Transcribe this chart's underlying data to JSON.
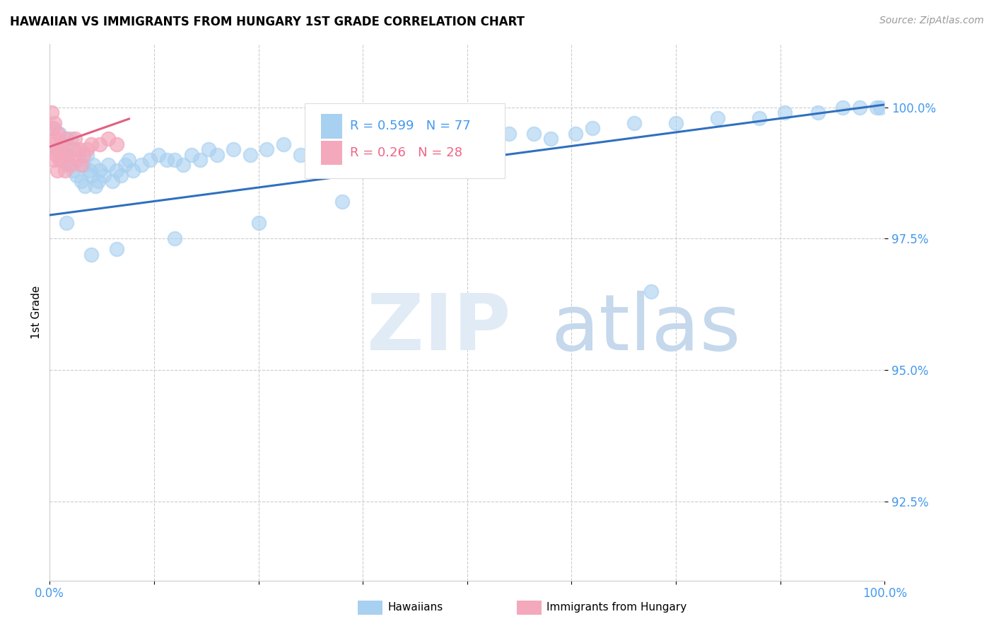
{
  "title": "HAWAIIAN VS IMMIGRANTS FROM HUNGARY 1ST GRADE CORRELATION CHART",
  "source": "Source: ZipAtlas.com",
  "ylabel": "1st Grade",
  "y_ticks": [
    92.5,
    95.0,
    97.5,
    100.0
  ],
  "y_tick_labels": [
    "92.5%",
    "95.0%",
    "97.5%",
    "100.0%"
  ],
  "x_range": [
    0.0,
    1.0
  ],
  "y_range": [
    91.0,
    101.2
  ],
  "R_blue": 0.599,
  "N_blue": 77,
  "R_pink": 0.26,
  "N_pink": 28,
  "legend_label_blue": "Hawaiians",
  "legend_label_pink": "Immigrants from Hungary",
  "blue_color": "#A8D0F0",
  "pink_color": "#F4A8BC",
  "trendline_blue": "#3070C0",
  "trendline_pink": "#E06080",
  "blue_trend_x0": 0.0,
  "blue_trend_y0": 97.95,
  "blue_trend_x1": 1.0,
  "blue_trend_y1": 100.05,
  "pink_trend_x0": 0.0,
  "pink_trend_y0": 99.25,
  "pink_trend_x1": 0.095,
  "pink_trend_y1": 99.78,
  "blue_x": [
    0.005,
    0.008,
    0.012,
    0.015,
    0.018,
    0.02,
    0.022,
    0.025,
    0.028,
    0.03,
    0.032,
    0.035,
    0.038,
    0.04,
    0.042,
    0.045,
    0.048,
    0.05,
    0.052,
    0.055,
    0.058,
    0.06,
    0.065,
    0.07,
    0.075,
    0.08,
    0.085,
    0.09,
    0.095,
    0.1,
    0.11,
    0.12,
    0.13,
    0.14,
    0.15,
    0.16,
    0.17,
    0.18,
    0.19,
    0.2,
    0.22,
    0.24,
    0.26,
    0.28,
    0.3,
    0.32,
    0.34,
    0.36,
    0.38,
    0.4,
    0.42,
    0.44,
    0.46,
    0.48,
    0.5,
    0.55,
    0.58,
    0.6,
    0.63,
    0.65,
    0.7,
    0.75,
    0.8,
    0.85,
    0.88,
    0.92,
    0.95,
    0.97,
    0.99,
    0.995,
    0.72,
    0.35,
    0.25,
    0.15,
    0.08,
    0.05,
    0.02
  ],
  "blue_y": [
    99.6,
    99.2,
    99.5,
    99.0,
    99.3,
    99.1,
    98.9,
    99.4,
    98.8,
    99.2,
    98.7,
    99.0,
    98.6,
    98.9,
    98.5,
    99.1,
    98.8,
    98.7,
    98.9,
    98.5,
    98.6,
    98.8,
    98.7,
    98.9,
    98.6,
    98.8,
    98.7,
    98.9,
    99.0,
    98.8,
    98.9,
    99.0,
    99.1,
    99.0,
    99.0,
    98.9,
    99.1,
    99.0,
    99.2,
    99.1,
    99.2,
    99.1,
    99.2,
    99.3,
    99.1,
    99.2,
    99.3,
    99.2,
    99.3,
    99.2,
    99.3,
    99.4,
    99.3,
    99.4,
    99.4,
    99.5,
    99.5,
    99.4,
    99.5,
    99.6,
    99.7,
    99.7,
    99.8,
    99.8,
    99.9,
    99.9,
    100.0,
    100.0,
    100.0,
    100.0,
    96.5,
    98.2,
    97.8,
    97.5,
    97.3,
    97.2,
    97.8
  ],
  "pink_x": [
    0.002,
    0.003,
    0.004,
    0.005,
    0.006,
    0.007,
    0.008,
    0.009,
    0.01,
    0.01,
    0.012,
    0.014,
    0.016,
    0.018,
    0.02,
    0.022,
    0.025,
    0.028,
    0.03,
    0.032,
    0.035,
    0.038,
    0.04,
    0.045,
    0.05,
    0.06,
    0.07,
    0.08
  ],
  "pink_y": [
    99.9,
    99.6,
    99.3,
    99.0,
    99.7,
    99.4,
    99.1,
    98.8,
    99.5,
    99.2,
    99.0,
    99.3,
    99.1,
    98.8,
    99.4,
    99.1,
    98.9,
    99.2,
    99.4,
    99.0,
    99.2,
    98.9,
    99.1,
    99.2,
    99.3,
    99.3,
    99.4,
    99.3
  ]
}
